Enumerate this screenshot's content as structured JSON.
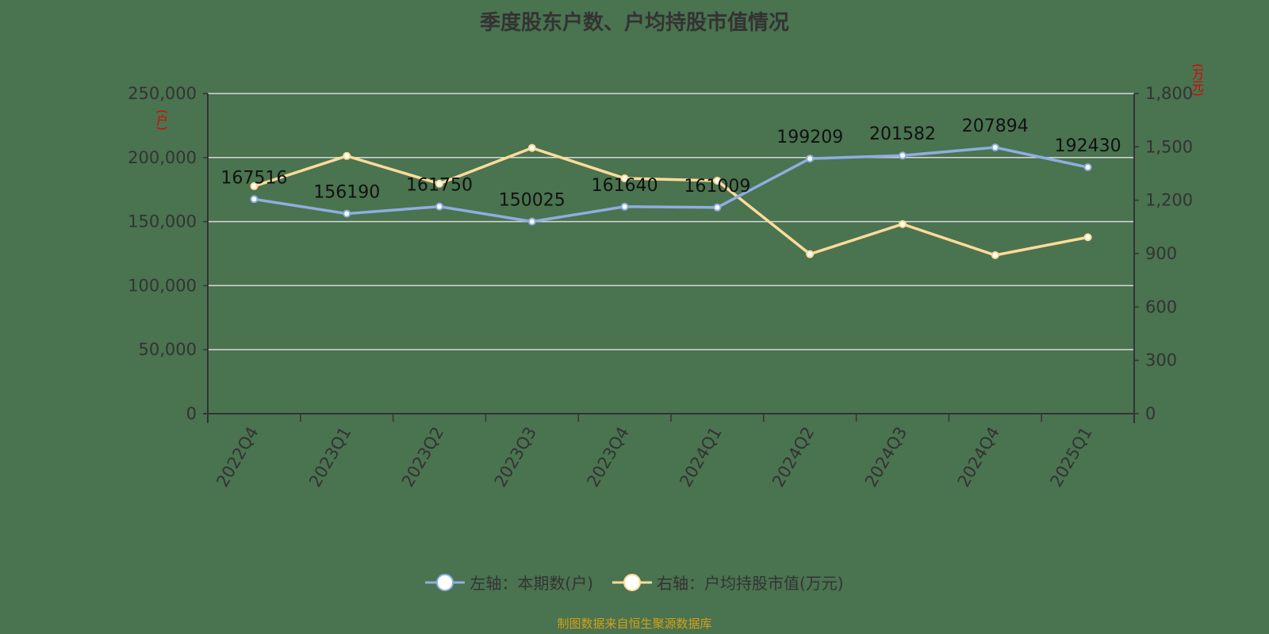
{
  "title": "季度股东户数、户均持股市值情况",
  "source_note": "制图数据来自恒生聚源数据库",
  "colors": {
    "background": "#4a7350",
    "series_left": "#8eaee0",
    "series_right": "#ffdb99",
    "axis": "#333333",
    "grid": "#d8d8d8",
    "unit_label": "#e00000",
    "source_text": "#d4a017"
  },
  "axes": {
    "left_unit": "(户)",
    "right_unit": "(万元)",
    "left_ticks": [
      "0",
      "50,000",
      "100,000",
      "150,000",
      "200,000",
      "250,000"
    ],
    "right_ticks": [
      "0",
      "300",
      "600",
      "900",
      "1,200",
      "1,500",
      "1,800"
    ]
  },
  "legend": [
    {
      "label": "左轴：本期数(户)",
      "icon": "circle-line-icon-blue"
    },
    {
      "label": "右轴：户均持股市值(万元)",
      "icon": "circle-line-icon-yellow"
    }
  ],
  "chart_data": {
    "type": "line",
    "title": "季度股东户数、户均持股市值情况",
    "categories": [
      "2022Q4",
      "2023Q1",
      "2023Q2",
      "2023Q3",
      "2023Q4",
      "2024Q1",
      "2024Q2",
      "2024Q3",
      "2024Q4",
      "2025Q1"
    ],
    "series": [
      {
        "name": "左轴：本期数(户)",
        "axis": "left",
        "values": [
          167516,
          156190,
          161750,
          150025,
          161640,
          161009,
          199209,
          201582,
          207894,
          192430
        ],
        "data_labels": true
      },
      {
        "name": "右轴：户均持股市值(万元)",
        "axis": "right",
        "values": [
          1279,
          1449,
          1293,
          1494,
          1323,
          1310,
          897,
          1066,
          891,
          992
        ],
        "data_labels": false
      }
    ],
    "ylabel_left": "(户)",
    "ylabel_right": "(万元)",
    "ylim_left": [
      0,
      250000
    ],
    "ylim_right": [
      0,
      1800
    ],
    "grid": true,
    "legend_position": "bottom",
    "xlabel_rotation": -60
  }
}
